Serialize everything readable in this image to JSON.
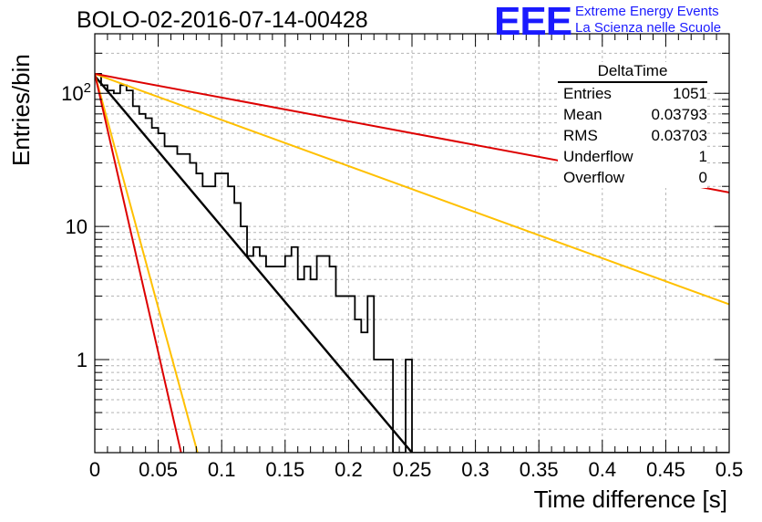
{
  "header": {
    "title": "BOLO-02-2016-07-14-00428",
    "logo_mark": "EEE",
    "logo_line1": "Extreme Energy Events",
    "logo_line2": "La Scienza nelle Scuole"
  },
  "stats": {
    "title": "DeltaTime",
    "rows": [
      {
        "label": "Entries",
        "value": "1051"
      },
      {
        "label": "Mean",
        "value": "0.03793"
      },
      {
        "label": "RMS",
        "value": "0.03703"
      },
      {
        "label": "Underflow",
        "value": "1"
      },
      {
        "label": "Overflow",
        "value": "0"
      }
    ]
  },
  "chart_data": {
    "type": "line",
    "title": "BOLO-02-2016-07-14-00428",
    "xlabel": "Time difference [s]",
    "ylabel": "Entries/bin",
    "xlim": [
      0,
      0.5
    ],
    "ylim": [
      0.2,
      280
    ],
    "yscale": "log",
    "grid": true,
    "x_ticks": [
      "0",
      "0.05",
      "0.1",
      "0.15",
      "0.2",
      "0.25",
      "0.3",
      "0.35",
      "0.4",
      "0.45",
      "0.5"
    ],
    "y_ticks": [
      {
        "value": 1,
        "label": "1"
      },
      {
        "value": 10,
        "label": "10"
      },
      {
        "value": 100,
        "label": "10^2"
      }
    ],
    "histogram": {
      "bin_width": 0.005,
      "counts": [
        140,
        115,
        105,
        100,
        115,
        105,
        80,
        70,
        65,
        55,
        50,
        40,
        40,
        35,
        35,
        30,
        25,
        20,
        20,
        25,
        25,
        20,
        15,
        10,
        6,
        7,
        6,
        5,
        5,
        5,
        6,
        7,
        4,
        5,
        4,
        6,
        6,
        5,
        3,
        3,
        3,
        2,
        1.6,
        3,
        1,
        1,
        1,
        0.1,
        0.1,
        1,
        0,
        0,
        0,
        0,
        0,
        0,
        0,
        0,
        0,
        0,
        0,
        0,
        0,
        0,
        0,
        0,
        0,
        0,
        0,
        0,
        0,
        0,
        0,
        0,
        0,
        0,
        0,
        0,
        0,
        0,
        0,
        0,
        0,
        0,
        0,
        0,
        0,
        0,
        0,
        0,
        0,
        0,
        0,
        0,
        0,
        0,
        0,
        0,
        0,
        0
      ]
    },
    "series": [
      {
        "color": "#000000",
        "x": [
          0,
          0.25
        ],
        "y": [
          135,
          0.2
        ]
      },
      {
        "color": "#ffc000",
        "x": [
          0,
          0.5
        ],
        "y": [
          140,
          2.6
        ]
      },
      {
        "color": "#dd0000",
        "x": [
          0,
          0.5
        ],
        "y": [
          140,
          18
        ]
      },
      {
        "color": "#ffc000",
        "x": [
          0,
          0.081
        ],
        "y": [
          140,
          0.2
        ]
      },
      {
        "color": "#dd0000",
        "x": [
          0,
          0.068
        ],
        "y": [
          140,
          0.2
        ]
      }
    ]
  }
}
